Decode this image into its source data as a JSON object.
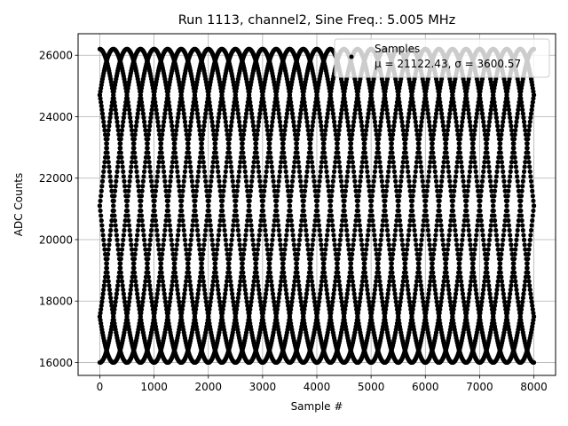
{
  "chart_data": {
    "type": "scatter",
    "title": "Run 1113, channel2, Sine Freq.: 5.005 MHz",
    "xlabel": "Sample #",
    "ylabel": "ADC Counts",
    "xlim": [
      -400,
      8400
    ],
    "ylim": [
      15580,
      26700
    ],
    "xticks": [
      0,
      1000,
      2000,
      3000,
      4000,
      5000,
      6000,
      7000,
      8000
    ],
    "xtick_labels": [
      "0",
      "1000",
      "2000",
      "3000",
      "4000",
      "5000",
      "6000",
      "7000",
      "8000"
    ],
    "yticks": [
      16000,
      18000,
      20000,
      22000,
      24000,
      26000
    ],
    "ytick_labels": [
      "16000",
      "18000",
      "20000",
      "22000",
      "24000",
      "26000"
    ],
    "grid": true,
    "legend_position": "top-right",
    "series": [
      {
        "name": "Samples",
        "stats_label": "μ = 21122.43, σ = 3600.57",
        "color": "#000000",
        "sample_count": 8000,
        "mean": 21122.43,
        "std": 3600.57,
        "amplitude": 5100,
        "offset": 21100,
        "cycle_length_samples": 2000,
        "phases_deg": [
          0,
          45,
          90,
          135,
          180,
          225,
          270,
          315
        ]
      }
    ]
  }
}
